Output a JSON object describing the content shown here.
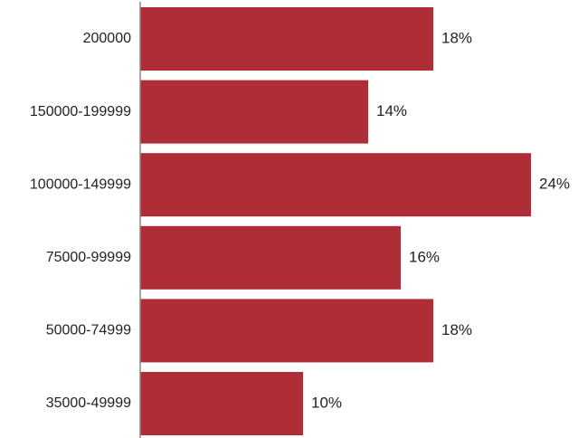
{
  "chart_data": {
    "type": "bar",
    "orientation": "horizontal",
    "categories": [
      "200000",
      "150000-199999",
      "100000-149999",
      "75000-99999",
      "50000-74999",
      "35000-49999"
    ],
    "values": [
      18,
      14,
      24,
      16,
      18,
      10
    ],
    "value_labels": [
      "18%",
      "14%",
      "24%",
      "16%",
      "18%",
      "10%"
    ],
    "unit": "%",
    "title": "",
    "xlabel": "",
    "ylabel": "",
    "xlim": [
      0,
      24
    ],
    "grid": false,
    "legend": "none",
    "colors": {
      "bar": "#AE2D37",
      "axis": "#888888",
      "text": "#222222",
      "background": "#FFFFFF"
    }
  }
}
